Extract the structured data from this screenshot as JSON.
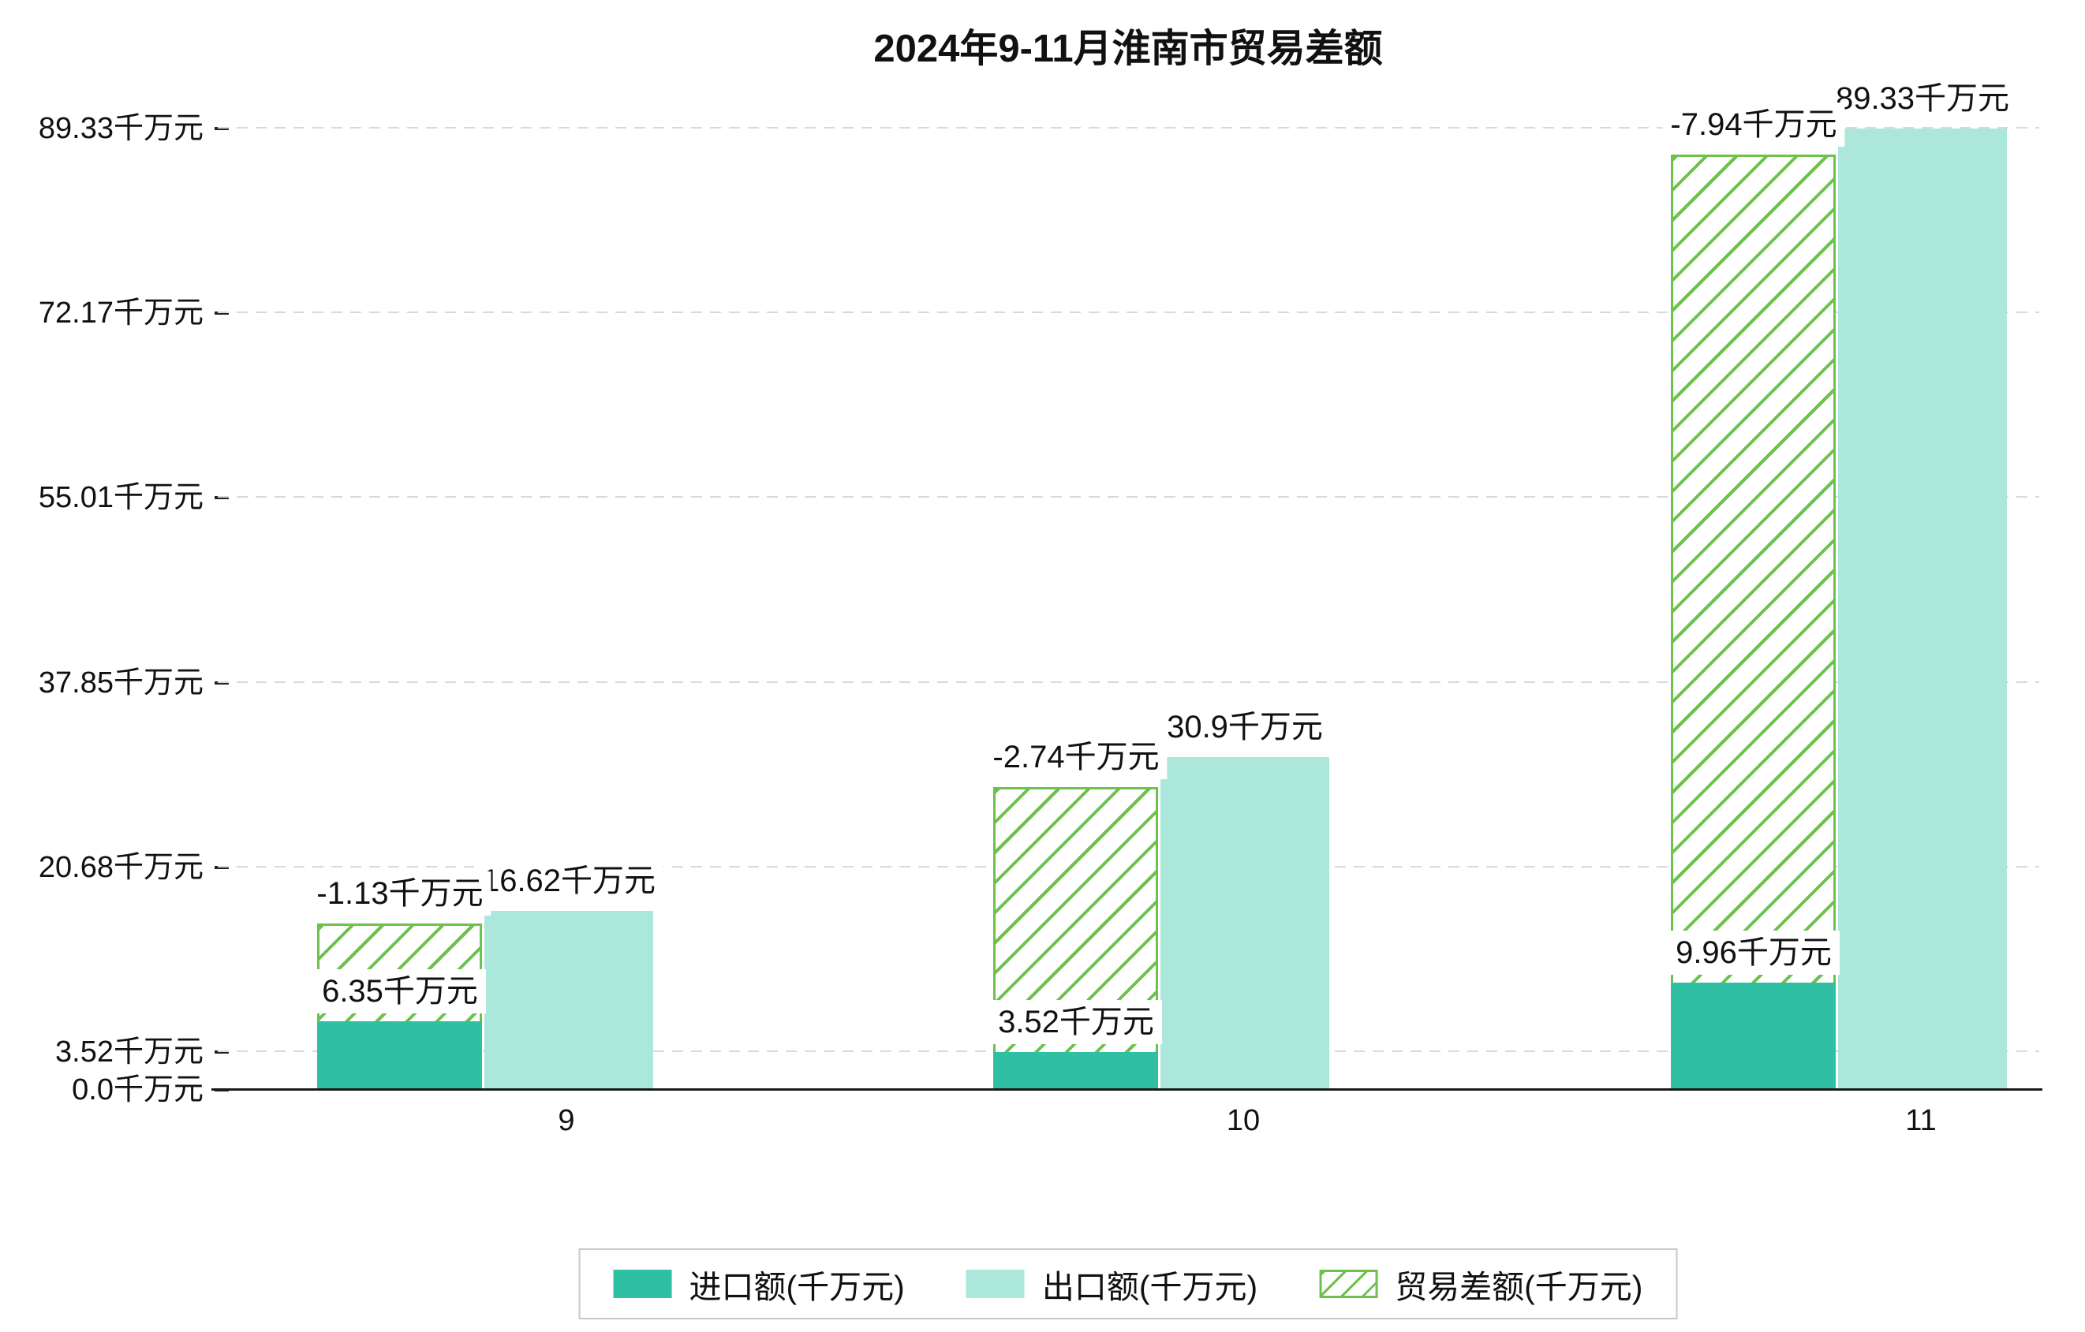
{
  "colors": {
    "import": "#2fbfa3",
    "export": "#abe7db",
    "balance": "#6cc24a",
    "grid": "#d9d9d9",
    "axis": "#1a1a1a",
    "label_background": "#ffffff",
    "text": "#111111"
  },
  "chart_data": {
    "type": "bar",
    "title": "2024年9-11月淮南市贸易差额",
    "unit": "千万元",
    "categories": [
      "9",
      "10",
      "11"
    ],
    "xlabel": "",
    "ylabel": "",
    "ylim": [
      0,
      91.7
    ],
    "grid": "horizontal dashed",
    "legend_position": "bottom center",
    "yticks": [
      {
        "value": 0.0,
        "label": "0.0千万元"
      },
      {
        "value": 3.52,
        "label": "3.52千万元"
      },
      {
        "value": 20.68,
        "label": "20.68千万元"
      },
      {
        "value": 37.85,
        "label": "37.85千万元"
      },
      {
        "value": 55.01,
        "label": "55.01千万元"
      },
      {
        "value": 72.17,
        "label": "72.17千万元"
      },
      {
        "value": 89.33,
        "label": "89.33千万元"
      }
    ],
    "series": [
      {
        "name": "进口额(千万元)",
        "style": "solid",
        "color": "#2fbfa3",
        "values": [
          6.35,
          3.52,
          9.96
        ],
        "labels": [
          "6.35千万元",
          "3.52千万元",
          "9.96千万元"
        ]
      },
      {
        "name": "出口额(千万元)",
        "style": "solid",
        "color": "#abe7db",
        "values": [
          16.62,
          30.9,
          89.33
        ],
        "labels": [
          "16.62千万元",
          "30.9千万元",
          "89.33千万元"
        ]
      },
      {
        "name": "贸易差额(千万元)",
        "style": "hatched-diagonal",
        "color": "#6cc24a",
        "values": [
          -1.13,
          -2.74,
          -7.94
        ],
        "labels": [
          "-1.13千万元",
          "-2.74千万元",
          "-7.94千万元"
        ],
        "bar_heights_as_drawn": [
          15.49,
          28.16,
          86.9
        ]
      }
    ]
  }
}
